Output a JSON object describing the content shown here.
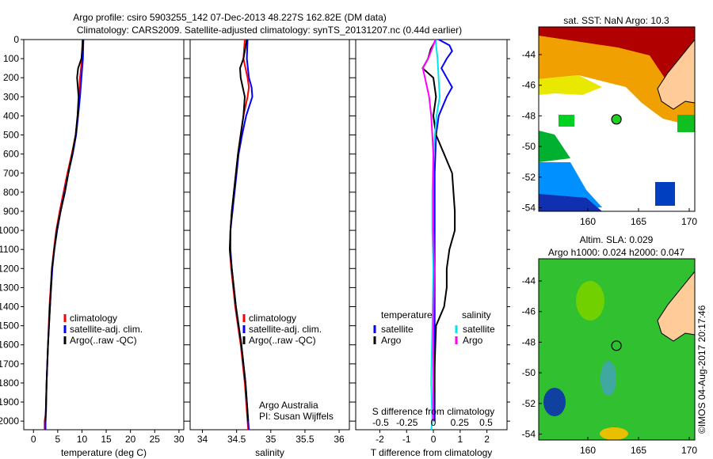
{
  "title_line1": "Argo profile: csiro 5903255_142 07-Dec-2013 48.227S 162.82E (DM data)",
  "title_line2": "Climatology: CARS2009. Satellite-adjusted climatology: synTS_20131207.nc (0.44d earlier)",
  "colors": {
    "climatology": "#ff0000",
    "satellite": "#0000ff",
    "argo": "#000000",
    "sal_sat": "#00e5ee",
    "sal_argo": "#ff00ff"
  },
  "chart_data": [
    {
      "type": "line",
      "xlabel": "temperature (deg C)",
      "ylabel": "",
      "xlim": [
        -2,
        31
      ],
      "ylim": [
        2045,
        0
      ],
      "xticks": [
        "0",
        "5",
        "10",
        "15",
        "20",
        "25",
        "30"
      ],
      "xtick_values": [
        0,
        5,
        10,
        15,
        20,
        25,
        30
      ],
      "yticks": [
        "0",
        "100",
        "200",
        "300",
        "400",
        "500",
        "600",
        "700",
        "800",
        "900",
        "1000",
        "1100",
        "1200",
        "1300",
        "1400",
        "1500",
        "1600",
        "1700",
        "1800",
        "1900",
        "2000"
      ],
      "legend": [
        "climatology",
        "satellite-adj. clim.",
        "Argo(..raw -QC)"
      ],
      "series": [
        {
          "name": "climatology",
          "depth": [
            0,
            100,
            200,
            300,
            400,
            500,
            600,
            700,
            800,
            900,
            1000,
            1100,
            1200,
            1400,
            1600,
            1800,
            1950,
            2000,
            2045
          ],
          "values": [
            10.1,
            10.0,
            9.6,
            9.4,
            9.1,
            8.7,
            7.9,
            7.0,
            6.2,
            5.4,
            4.7,
            4.2,
            3.8,
            3.3,
            3.0,
            2.7,
            2.6,
            2.3,
            2.3
          ]
        },
        {
          "name": "satellite-adj. clim.",
          "depth": [
            0,
            100,
            200,
            300,
            400,
            500,
            600,
            700,
            800,
            900,
            1000,
            1100,
            1200,
            1400,
            1600,
            1800,
            2000,
            2045
          ],
          "values": [
            10.3,
            10.2,
            9.9,
            9.6,
            9.2,
            8.8,
            8.1,
            7.2,
            6.4,
            5.6,
            4.9,
            4.3,
            3.9,
            3.4,
            3.0,
            2.7,
            2.5,
            2.5
          ]
        },
        {
          "name": "Argo(..raw -QC)",
          "depth": [
            0,
            100,
            150,
            200,
            300,
            400,
            500,
            600,
            700,
            800,
            900,
            1000,
            1100,
            1200,
            1400,
            1600,
            1800,
            2000
          ],
          "values": [
            10.2,
            9.9,
            9.2,
            9.0,
            9.3,
            9.1,
            8.7,
            8.0,
            7.2,
            6.5,
            5.6,
            4.8,
            4.3,
            3.8,
            3.4,
            3.0,
            2.7,
            2.5
          ]
        }
      ]
    },
    {
      "type": "line",
      "xlabel": "salinity",
      "xlim": [
        33.82,
        36.15
      ],
      "ylim": [
        2045,
        0
      ],
      "xticks": [
        "34",
        "34.5",
        "35",
        "35.5",
        "36"
      ],
      "xtick_values": [
        34,
        34.5,
        35,
        35.5,
        36
      ],
      "legend": [
        "climatology",
        "satellite-adj. clim.",
        "Argo(..raw -QC)"
      ],
      "annotation": [
        "Argo Australia",
        "PI: Susan Wijffels"
      ],
      "series": [
        {
          "name": "climatology",
          "depth": [
            0,
            100,
            200,
            250,
            300,
            400,
            500,
            600,
            700,
            800,
            900,
            1000,
            1100,
            1200,
            1400,
            1600,
            1800,
            2000,
            2045
          ],
          "values": [
            34.62,
            34.6,
            34.66,
            34.68,
            34.66,
            34.6,
            34.56,
            34.52,
            34.49,
            34.46,
            34.43,
            34.41,
            34.4,
            34.42,
            34.48,
            34.56,
            34.62,
            34.66,
            34.67
          ]
        },
        {
          "name": "satellite-adj. clim.",
          "depth": [
            0,
            100,
            200,
            250,
            300,
            400,
            500,
            600,
            700,
            800,
            900,
            1000,
            1100,
            1200,
            1400,
            1600,
            1800,
            2000,
            2045
          ],
          "values": [
            34.66,
            34.65,
            34.68,
            34.72,
            34.73,
            34.64,
            34.58,
            34.53,
            34.5,
            34.47,
            34.44,
            34.41,
            34.41,
            34.43,
            34.49,
            34.57,
            34.63,
            34.67,
            34.68
          ]
        },
        {
          "name": "Argo(..raw -QC)",
          "depth": [
            0,
            100,
            150,
            200,
            300,
            400,
            500,
            600,
            700,
            800,
            900,
            1000,
            1100,
            1200,
            1400,
            1600,
            1800,
            2000
          ],
          "values": [
            34.65,
            34.6,
            34.55,
            34.56,
            34.62,
            34.6,
            34.56,
            34.52,
            34.49,
            34.46,
            34.43,
            34.41,
            34.4,
            34.43,
            34.49,
            34.57,
            34.63,
            34.67
          ]
        }
      ]
    },
    {
      "type": "line",
      "xlabel": "T difference from climatology",
      "xlim": [
        -2.9,
        2.75
      ],
      "ylim": [
        2045,
        0
      ],
      "xticks": [
        "-2",
        "-1",
        "0",
        "1",
        "2"
      ],
      "xtick_values": [
        -2,
        -1,
        0,
        1,
        2
      ],
      "x2label": "S difference from climatology",
      "x2ticks": [
        "-0.5",
        "-0.25",
        "0",
        "0.25",
        "0.5"
      ],
      "x2tick_values": [
        -0.5,
        -0.25,
        0,
        0.25,
        0.5
      ],
      "legend": {
        "temperature": "temperature",
        "salinity": "salinity",
        "t_sat": "satellite",
        "t_argo": "Argo",
        "s_sat": "satellite",
        "s_argo": "Argo"
      },
      "series": [
        {
          "name": "T satellite",
          "scale": "T",
          "depth": [
            0,
            30,
            60,
            100,
            150,
            200,
            250,
            300,
            400,
            500,
            700,
            900,
            1100,
            1300,
            1500,
            1700,
            2000
          ],
          "values": [
            0.2,
            0.6,
            0.7,
            0.5,
            0.3,
            0.5,
            0.7,
            0.5,
            0.2,
            0.1,
            0.05,
            0.05,
            0.05,
            0.05,
            0.05,
            0.05,
            0.05
          ]
        },
        {
          "name": "T Argo",
          "scale": "T",
          "depth": [
            0,
            50,
            100,
            150,
            200,
            300,
            400,
            500,
            600,
            700,
            800,
            900,
            1000,
            1100,
            1200,
            1300,
            1400,
            1500,
            1700,
            2000
          ],
          "values": [
            0.1,
            -0.1,
            -0.2,
            -0.4,
            0.0,
            0.1,
            0.0,
            0.1,
            0.4,
            0.7,
            0.75,
            0.8,
            0.8,
            0.6,
            0.5,
            0.5,
            0.4,
            0.1,
            0.05,
            0.0
          ]
        },
        {
          "name": "S satellite",
          "scale": "S",
          "depth": [
            0,
            100,
            200,
            300,
            400,
            600,
            800,
            1000,
            1200,
            1500,
            1800,
            2000,
            2045
          ],
          "values": [
            0.02,
            0.04,
            0.05,
            0.06,
            0.03,
            0.0,
            -0.01,
            -0.01,
            0.0,
            -0.01,
            -0.02,
            -0.01,
            -0.02
          ]
        },
        {
          "name": "S Argo",
          "scale": "S",
          "depth": [
            0,
            100,
            150,
            200,
            300,
            400,
            500,
            600,
            800,
            1000,
            1200,
            1500,
            1800,
            2000
          ],
          "values": [
            0.02,
            -0.05,
            -0.1,
            -0.08,
            -0.04,
            -0.02,
            -0.01,
            0.0,
            0.0,
            0.0,
            0.01,
            0.0,
            0.0,
            0.0
          ]
        }
      ]
    }
  ],
  "map_sst": {
    "title": "sat. SST: NaN Argo: 10.3",
    "lat_ticks": [
      "-44",
      "-46",
      "-48",
      "-50",
      "-52",
      "-54"
    ],
    "lon_ticks": [
      "160",
      "165",
      "170"
    ]
  },
  "map_sla": {
    "title_line1": "Altim. SLA: 0.029",
    "title_line2": "Argo h1000: 0.024 h2000: 0.047",
    "lat_ticks": [
      "-44",
      "-46",
      "-48",
      "-50",
      "-52",
      "-54"
    ],
    "lon_ticks": [
      "160",
      "165",
      "170"
    ]
  },
  "footer": "©IMOS 04-Aug-2017 20:17:46"
}
